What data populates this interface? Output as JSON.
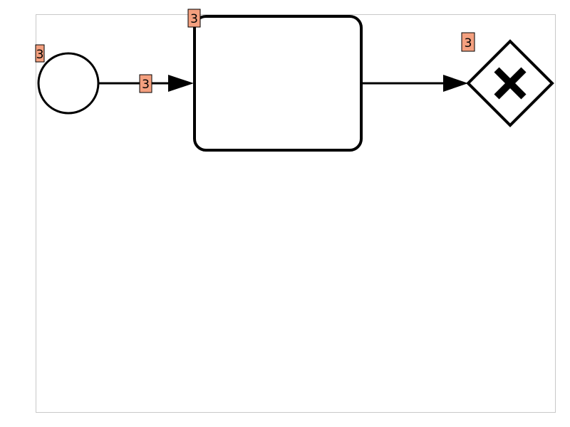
{
  "diagram": {
    "type": "bpmn-process",
    "colors": {
      "stroke": "#000000",
      "fill": "#ffffff",
      "badge_fill": "#f4a07f",
      "frame": "#c8c8c8"
    },
    "elements": [
      {
        "id": "start-event",
        "kind": "start-event",
        "shape": "circle"
      },
      {
        "id": "task",
        "kind": "task",
        "shape": "rounded-rectangle"
      },
      {
        "id": "exclusive-gateway",
        "kind": "exclusive-gateway",
        "shape": "diamond",
        "marker": "x-icon"
      }
    ],
    "flows": [
      {
        "id": "flow-start-to-task",
        "from": "start-event",
        "to": "task"
      },
      {
        "id": "flow-task-to-gateway",
        "from": "task",
        "to": "exclusive-gateway"
      }
    ],
    "badges": {
      "start_event": "3",
      "flow_1": "3",
      "task": "3",
      "gateway": "3"
    }
  }
}
